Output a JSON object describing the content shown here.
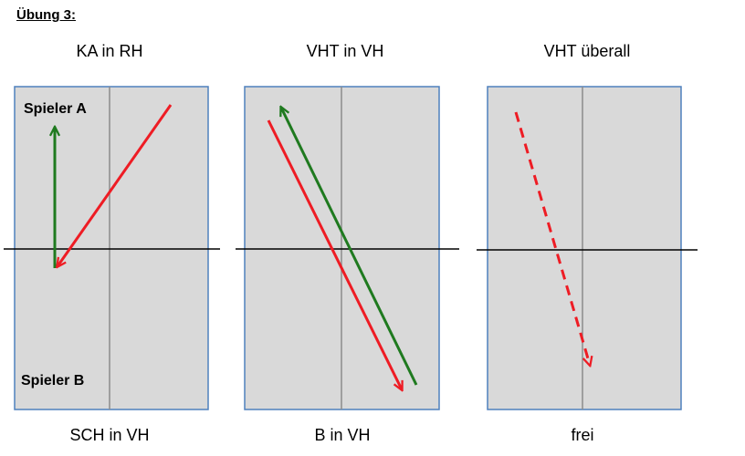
{
  "title": "Übung 3:",
  "panels": [
    {
      "top_label": "KA in RH",
      "bottom_label": "SCH in VH",
      "player_top": "Spieler A",
      "player_bottom": "Spieler B"
    },
    {
      "top_label": "VHT in VH",
      "bottom_label": "B in VH"
    },
    {
      "top_label": "VHT überall",
      "bottom_label": "frei"
    }
  ],
  "colors": {
    "court_fill": "#d9d9d9",
    "court_border": "#4f81bd",
    "net": "#000000",
    "center_line": "#8c8c8c",
    "arrow_green": "#1f7a1f",
    "arrow_red": "#ee1c24"
  },
  "arrows": [
    {
      "panel": 1,
      "color": "green",
      "style": "solid",
      "icon": "arrow-up-icon"
    },
    {
      "panel": 1,
      "color": "red",
      "style": "solid",
      "icon": "arrow-down-left-icon"
    },
    {
      "panel": 2,
      "color": "green",
      "style": "solid",
      "icon": "arrow-up-left-icon"
    },
    {
      "panel": 2,
      "color": "red",
      "style": "solid",
      "icon": "arrow-down-right-icon"
    },
    {
      "panel": 3,
      "color": "red",
      "style": "dashed",
      "icon": "arrow-down-right-icon"
    }
  ]
}
